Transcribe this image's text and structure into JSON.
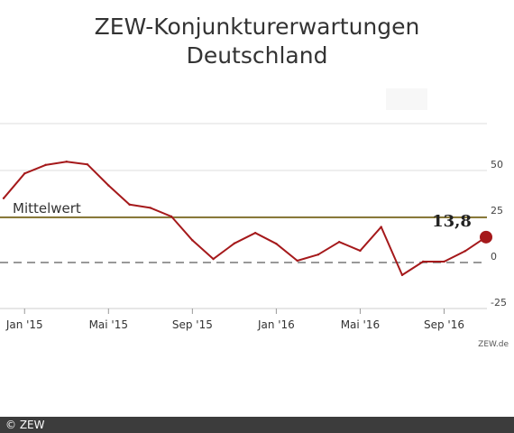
{
  "chart_data": {
    "type": "line",
    "title": "ZEW-Konjunkturerwartungen",
    "subtitle": "Deutschland",
    "x": [
      "2014-12",
      "2015-01",
      "2015-02",
      "2015-03",
      "2015-04",
      "2015-05",
      "2015-06",
      "2015-07",
      "2015-08",
      "2015-09",
      "2015-10",
      "2015-11",
      "2015-12",
      "2016-01",
      "2016-02",
      "2016-03",
      "2016-04",
      "2016-05",
      "2016-06",
      "2016-07",
      "2016-08",
      "2016-09",
      "2016-10",
      "2016-11"
    ],
    "xtick_labels": [
      {
        "label": "Jan '15",
        "x": "2015-01"
      },
      {
        "label": "Mai '15",
        "x": "2015-05"
      },
      {
        "label": "Sep '15",
        "x": "2015-09"
      },
      {
        "label": "Jan '16",
        "x": "2016-01"
      },
      {
        "label": "Mai '16",
        "x": "2016-05"
      },
      {
        "label": "Sep '16",
        "x": "2016-09"
      }
    ],
    "series": [
      {
        "values": [
          34.9,
          48.4,
          53.0,
          54.8,
          53.3,
          41.9,
          31.5,
          29.7,
          25.0,
          12.1,
          1.9,
          10.4,
          16.1,
          10.2,
          1.0,
          4.3,
          11.2,
          6.4,
          19.3,
          -6.8,
          0.5,
          0.5,
          6.2,
          13.8
        ],
        "color": "#a5191b"
      }
    ],
    "reference_line": {
      "label": "Mittelwert",
      "value": 24.5,
      "color": "#8a7a3a"
    },
    "zero_line": {
      "value": 0,
      "style": "dashed",
      "color": "#999999"
    },
    "last_value_label": "13,8",
    "yticks": [
      50,
      25,
      0,
      -25
    ],
    "ytick_labels": [
      "50",
      "25",
      "0",
      "-25"
    ],
    "ylim": [
      -25,
      50
    ],
    "grid": true,
    "source": "ZEW.de"
  },
  "footer": {
    "credit": "© ZEW"
  }
}
